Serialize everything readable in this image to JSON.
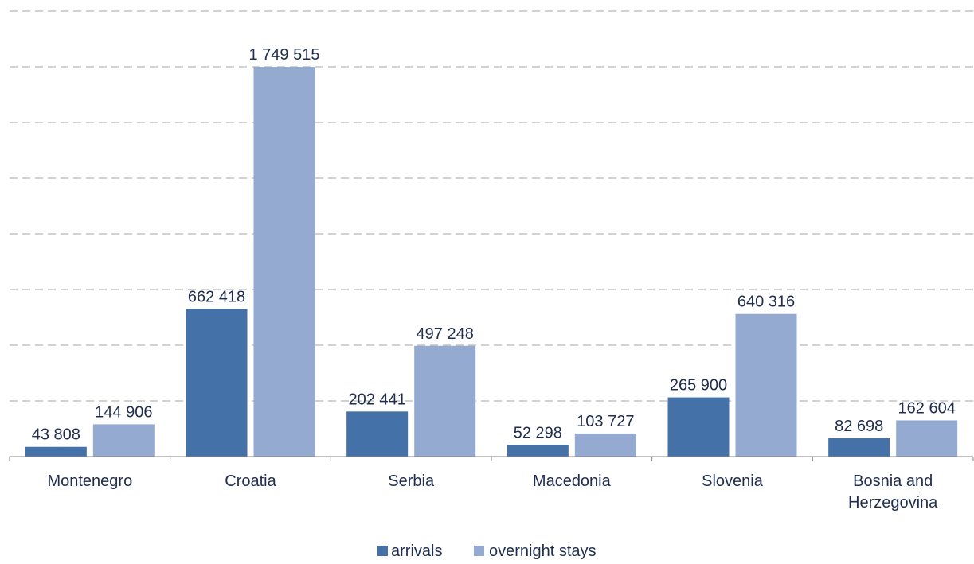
{
  "chart_data": {
    "type": "bar",
    "categories": [
      [
        "Montenegro"
      ],
      [
        "Croatia"
      ],
      [
        "Serbia"
      ],
      [
        "Macedonia"
      ],
      [
        "Slovenia"
      ],
      [
        "Bosnia and",
        "Herzegovina"
      ]
    ],
    "series": [
      {
        "name": "arrivals",
        "color": "#4472a8",
        "values": [
          43808,
          662418,
          202441,
          52298,
          265900,
          82698
        ],
        "labels": [
          "43 808",
          "662 418",
          "202 441",
          "52 298",
          "265 900",
          "82 698"
        ]
      },
      {
        "name": "overnight stays",
        "color": "#95aad0",
        "values": [
          144906,
          1749515,
          497248,
          103727,
          640316,
          162604
        ],
        "labels": [
          "144 906",
          "1 749 515",
          "497 248",
          "103 727",
          "640 316",
          "162 604"
        ]
      }
    ],
    "ylim": [
      0,
      2000000
    ],
    "grid": true,
    "legend": "bottom"
  }
}
